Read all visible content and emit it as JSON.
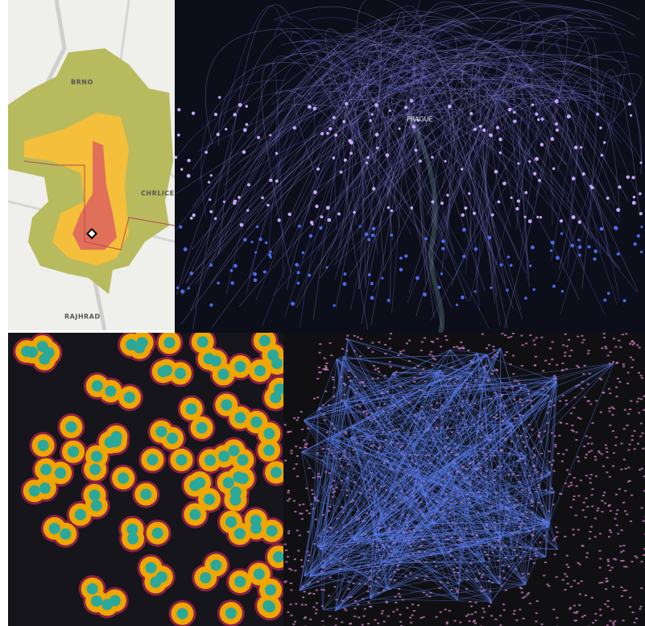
{
  "brno_map": {
    "labels": [
      "BRNO",
      "CHRLICE",
      "RAJHRAD"
    ]
  },
  "prague_map": {
    "labels": [
      "PRAGUE"
    ]
  }
}
